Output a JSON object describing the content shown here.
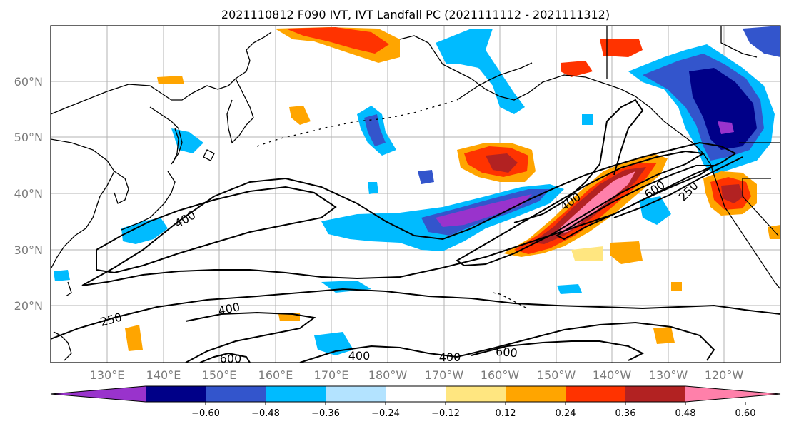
{
  "figure": {
    "title": "2021110812 F090 IVT, IVT Landfall PC (2021111112 - 2021111312)"
  },
  "map": {
    "latitude_labels": [
      "60°N",
      "50°N",
      "40°N",
      "30°N",
      "20°N"
    ],
    "longitude_labels": [
      "130°E",
      "140°E",
      "150°E",
      "160°E",
      "170°E",
      "180°W",
      "170°W",
      "160°W",
      "150°W",
      "140°W",
      "130°W",
      "120°W"
    ],
    "contour_labels": [
      "400",
      "400",
      "250",
      "400",
      "600",
      "400",
      "400",
      "600",
      "400",
      "600",
      "250"
    ]
  },
  "colorbar": {
    "colors": [
      "#9933cc",
      "#000088",
      "#3355cc",
      "#00bbff",
      "#b3e3ff",
      "#ffffff",
      "#ffe680",
      "#ffa500",
      "#ff3300",
      "#b22222",
      "#ff80aa"
    ],
    "tick_labels": [
      "−0.60",
      "−0.48",
      "−0.36",
      "−0.24",
      "−0.12",
      "0.12",
      "0.24",
      "0.36",
      "0.48",
      "0.60"
    ]
  }
}
